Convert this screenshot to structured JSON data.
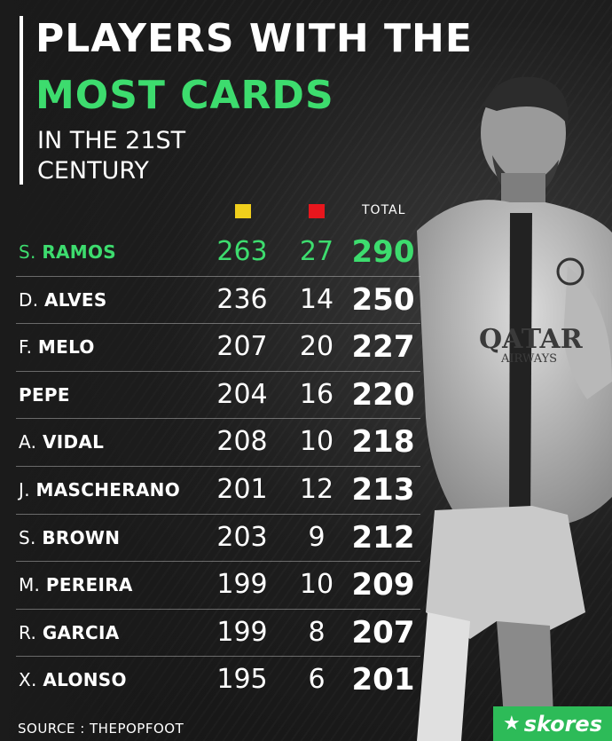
{
  "title": {
    "line1": "PLAYERS WITH THE",
    "line2": "MOST CARDS",
    "subtitle": "IN THE 21ST CENTURY"
  },
  "header": {
    "total_label": "TOTAL",
    "yellow_color": "#f0cf1c",
    "red_color": "#e8161d"
  },
  "players": [
    {
      "initial": "S.",
      "surname": "RAMOS",
      "yellow": "263",
      "red": "27",
      "total": "290"
    },
    {
      "initial": "D.",
      "surname": "ALVES",
      "yellow": "236",
      "red": "14",
      "total": "250"
    },
    {
      "initial": "F.",
      "surname": "MELO",
      "yellow": "207",
      "red": "20",
      "total": "227"
    },
    {
      "initial": "",
      "surname": "PEPE",
      "yellow": "204",
      "red": "16",
      "total": "220"
    },
    {
      "initial": "A.",
      "surname": "VIDAL",
      "yellow": "208",
      "red": "10",
      "total": "218"
    },
    {
      "initial": "J.",
      "surname": "MASCHERANO",
      "yellow": "201",
      "red": "12",
      "total": "213"
    },
    {
      "initial": "S.",
      "surname": "BROWN",
      "yellow": "203",
      "red": "9",
      "total": "212"
    },
    {
      "initial": "M.",
      "surname": "PEREIRA",
      "yellow": "199",
      "red": "10",
      "total": "209"
    },
    {
      "initial": "R.",
      "surname": "GARCIA",
      "yellow": "199",
      "red": "8",
      "total": "207"
    },
    {
      "initial": "X.",
      "surname": "ALONSO",
      "yellow": "195",
      "red": "6",
      "total": "201"
    }
  ],
  "highlight_color": "#3ddc6e",
  "footer": {
    "source": "SOURCE : THEPOPFOOT",
    "brand": "skores",
    "brand_color": "#2dbb58"
  },
  "photo_icon": "player-photo"
}
